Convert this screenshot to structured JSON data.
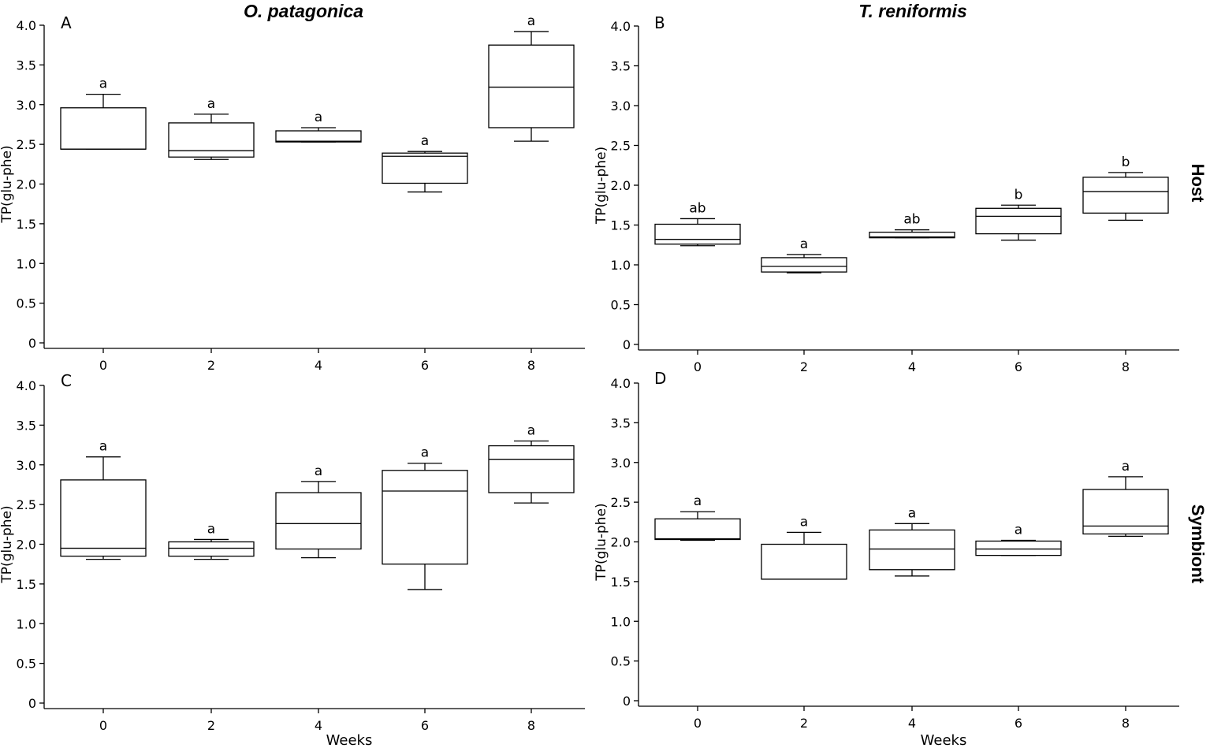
{
  "figure": {
    "col_titles": [
      "O. patagonica",
      "T. reniformis"
    ],
    "row_labels": [
      "Host",
      "Symbiont"
    ]
  },
  "chart_data": [
    {
      "type": "box",
      "panel": "A",
      "species": "O. patagonica",
      "group": "Host",
      "ylabel": "TP(glu-phe)",
      "xlabel": "",
      "ylim": [
        0,
        4.0
      ],
      "yticks": [
        "0",
        "0.5",
        "1.0",
        "1.5",
        "2.0",
        "2.5",
        "3.0",
        "3.5",
        "4.0"
      ],
      "categories": [
        "0",
        "2",
        "4",
        "6",
        "8"
      ],
      "boxes": [
        {
          "min": 2.44,
          "q1": 2.44,
          "median": 2.44,
          "q3": 2.96,
          "max": 3.13,
          "letter": "a"
        },
        {
          "min": 2.31,
          "q1": 2.34,
          "median": 2.42,
          "q3": 2.77,
          "max": 2.88,
          "letter": "a"
        },
        {
          "min": 2.53,
          "q1": 2.53,
          "median": 2.54,
          "q3": 2.67,
          "max": 2.71,
          "letter": "a"
        },
        {
          "min": 1.9,
          "q1": 2.01,
          "median": 2.35,
          "q3": 2.39,
          "max": 2.41,
          "letter": "a"
        },
        {
          "min": 2.54,
          "q1": 2.71,
          "median": 3.22,
          "q3": 3.75,
          "max": 3.92,
          "letter": "a"
        }
      ]
    },
    {
      "type": "box",
      "panel": "B",
      "species": "T. reniformis",
      "group": "Host",
      "ylabel": "TP(glu-phe)",
      "xlabel": "",
      "ylim": [
        0,
        4.0
      ],
      "yticks": [
        "0",
        "0.5",
        "1.0",
        "1.5",
        "2.0",
        "2.5",
        "3.0",
        "3.5",
        "4.0"
      ],
      "categories": [
        "0",
        "2",
        "4",
        "6",
        "8"
      ],
      "boxes": [
        {
          "min": 1.24,
          "q1": 1.26,
          "median": 1.32,
          "q3": 1.51,
          "max": 1.58,
          "letter": "ab"
        },
        {
          "min": 0.9,
          "q1": 0.91,
          "median": 0.98,
          "q3": 1.09,
          "max": 1.13,
          "letter": "a"
        },
        {
          "min": 1.34,
          "q1": 1.34,
          "median": 1.35,
          "q3": 1.41,
          "max": 1.44,
          "letter": "ab"
        },
        {
          "min": 1.31,
          "q1": 1.39,
          "median": 1.61,
          "q3": 1.71,
          "max": 1.75,
          "letter": "b"
        },
        {
          "min": 1.56,
          "q1": 1.65,
          "median": 1.92,
          "q3": 2.1,
          "max": 2.16,
          "letter": "b"
        }
      ]
    },
    {
      "type": "box",
      "panel": "C",
      "species": "O. patagonica",
      "group": "Symbiont",
      "ylabel": "TP(glu-phe)",
      "xlabel": "Weeks",
      "ylim": [
        0,
        4.0
      ],
      "yticks": [
        "0",
        "0.5",
        "1.0",
        "1.5",
        "2.0",
        "2.5",
        "3.0",
        "3.5",
        "4.0"
      ],
      "categories": [
        "0",
        "2",
        "4",
        "6",
        "8"
      ],
      "boxes": [
        {
          "min": 1.81,
          "q1": 1.85,
          "median": 1.95,
          "q3": 2.81,
          "max": 3.1,
          "letter": "a"
        },
        {
          "min": 1.81,
          "q1": 1.85,
          "median": 1.95,
          "q3": 2.03,
          "max": 2.06,
          "letter": "a"
        },
        {
          "min": 1.83,
          "q1": 1.94,
          "median": 2.26,
          "q3": 2.65,
          "max": 2.79,
          "letter": "a"
        },
        {
          "min": 1.43,
          "q1": 1.75,
          "median": 2.67,
          "q3": 2.93,
          "max": 3.02,
          "letter": "a"
        },
        {
          "min": 2.52,
          "q1": 2.65,
          "median": 3.07,
          "q3": 3.24,
          "max": 3.3,
          "letter": "a"
        }
      ]
    },
    {
      "type": "box",
      "panel": "D",
      "species": "T. reniformis",
      "group": "Symbiont",
      "ylabel": "TP(glu-phe)",
      "xlabel": "Weeks",
      "ylim": [
        0,
        4.0
      ],
      "yticks": [
        "0",
        "0.5",
        "1.0",
        "1.5",
        "2.0",
        "2.5",
        "3.0",
        "3.5",
        "4.0"
      ],
      "categories": [
        "0",
        "2",
        "4",
        "6",
        "8"
      ],
      "boxes": [
        {
          "min": 2.02,
          "q1": 2.03,
          "median": 2.04,
          "q3": 2.29,
          "max": 2.38,
          "letter": "a"
        },
        {
          "min": 1.53,
          "q1": 1.53,
          "median": 1.53,
          "q3": 1.97,
          "max": 2.12,
          "letter": "a"
        },
        {
          "min": 1.57,
          "q1": 1.65,
          "median": 1.91,
          "q3": 2.15,
          "max": 2.23,
          "letter": "a"
        },
        {
          "min": 1.83,
          "q1": 1.83,
          "median": 1.91,
          "q3": 2.01,
          "max": 2.02,
          "letter": "a"
        },
        {
          "min": 2.07,
          "q1": 2.1,
          "median": 2.2,
          "q3": 2.66,
          "max": 2.82,
          "letter": "a"
        }
      ]
    }
  ]
}
